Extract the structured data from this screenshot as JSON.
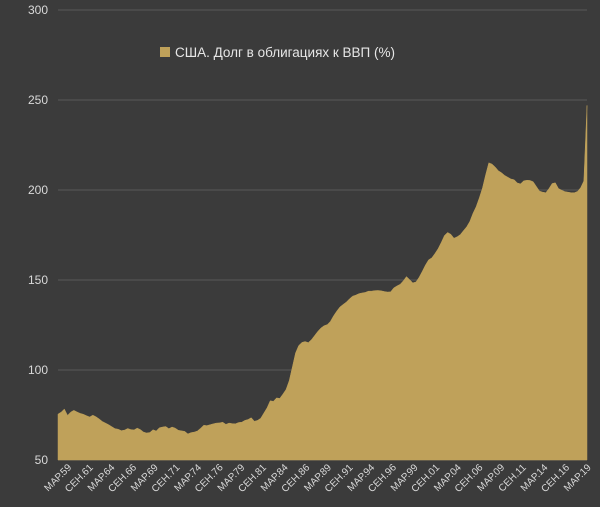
{
  "chart_data": {
    "type": "area",
    "title": "",
    "xlabel": "",
    "ylabel": "",
    "ylim": [
      50,
      300
    ],
    "yticks": [
      50,
      100,
      150,
      200,
      250,
      300
    ],
    "grid": "horizontal",
    "legend_position": "top-left",
    "series": [
      {
        "name": "США. Долг в облигациях к ВВП (%)",
        "color": "#bfa15a",
        "values": [
          75.5,
          76.6,
          78.3,
          74.8,
          76.6,
          77.6,
          76.7,
          75.9,
          75.4,
          74.6,
          73.9,
          74.9,
          74.0,
          72.8,
          71.4,
          70.5,
          69.6,
          68.5,
          67.4,
          67.1,
          66.3,
          66.6,
          67.5,
          66.9,
          66.7,
          67.7,
          66.9,
          65.5,
          65.0,
          65.3,
          66.8,
          66.1,
          67.9,
          68.3,
          68.6,
          67.4,
          68.3,
          67.7,
          66.5,
          66.2,
          65.9,
          64.5,
          65.2,
          65.5,
          66.1,
          67.6,
          69.3,
          69.1,
          69.6,
          70.1,
          70.5,
          70.6,
          71.0,
          69.8,
          70.5,
          70.2,
          70.1,
          70.8,
          71.0,
          72.0,
          72.5,
          73.5,
          71.5,
          72.0,
          73.2,
          76.1,
          79.0,
          82.9,
          82.6,
          84.5,
          84.2,
          86.6,
          89.2,
          94.1,
          101.8,
          109.5,
          113.6,
          115.3,
          115.8,
          115.2,
          116.8,
          119.1,
          121.4,
          123.3,
          124.6,
          125.2,
          127.0,
          130.1,
          132.7,
          135.0,
          136.4,
          137.7,
          139.5,
          141.0,
          141.6,
          142.4,
          142.8,
          143.1,
          143.8,
          143.8,
          144.1,
          144.2,
          144.0,
          143.6,
          143.3,
          143.4,
          145.6,
          146.7,
          147.6,
          149.5,
          151.9,
          150.2,
          148.4,
          148.9,
          151.5,
          154.8,
          158.3,
          161.2,
          162.3,
          164.7,
          167.4,
          170.9,
          174.7,
          176.4,
          175.4,
          173.2,
          174.0,
          175.2,
          177.4,
          179.5,
          182.5,
          187.0,
          190.7,
          195.6,
          201.1,
          208.4,
          215.1,
          214.4,
          212.8,
          210.7,
          209.6,
          208.1,
          207.1,
          206.1,
          205.7,
          203.9,
          203.4,
          205.1,
          205.4,
          205.3,
          204.6,
          202.0,
          199.4,
          198.8,
          198.5,
          200.8,
          203.6,
          204.0,
          200.8,
          199.9,
          199.1,
          198.8,
          198.5,
          198.5,
          199.2,
          201.3,
          205.0,
          247.0
        ]
      }
    ],
    "x_tick_labels": [
      "МАР.59",
      "СЕН.61",
      "МАР.64",
      "СЕН.66",
      "МАР.69",
      "СЕН.71",
      "МАР.74",
      "СЕН.76",
      "МАР.79",
      "СЕН.81",
      "МАР.84",
      "СЕН.86",
      "МАР.89",
      "СЕН.91",
      "МАР.94",
      "СЕН.96",
      "МАР.99",
      "СЕН.01",
      "МАР.04",
      "СЕН.06",
      "МАР.09",
      "СЕН.11",
      "МАР.14",
      "СЕН.16",
      "МАР.19"
    ]
  }
}
